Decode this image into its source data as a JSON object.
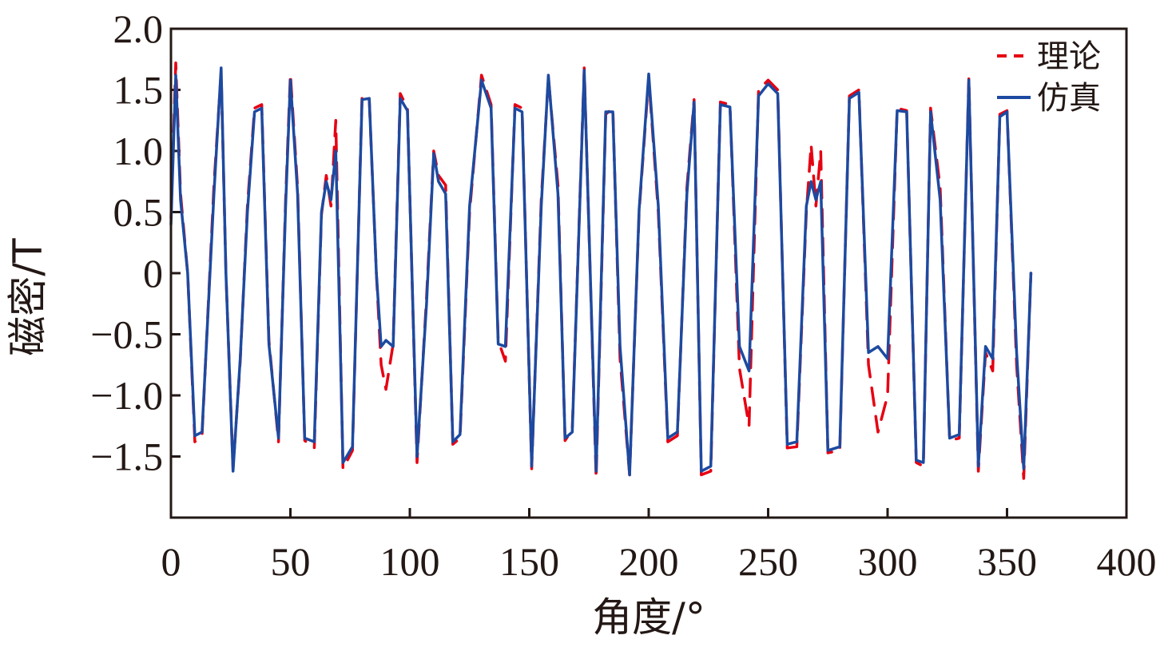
{
  "chart_data": {
    "type": "line",
    "title": "",
    "xlabel": "角度/°",
    "ylabel": "磁密/T",
    "xlim": [
      0,
      400
    ],
    "ylim": [
      -2.0,
      2.0
    ],
    "xticks": [
      0,
      50,
      100,
      150,
      200,
      250,
      300,
      350,
      400
    ],
    "xtick_labels": [
      "0",
      "50",
      "100",
      "150",
      "200",
      "250",
      "300",
      "350",
      "400"
    ],
    "yticks": [
      2.0,
      1.5,
      1.0,
      0.5,
      0,
      -0.5,
      -1.0,
      -1.5
    ],
    "ytick_labels": [
      "2.0",
      "1.5",
      "1.0",
      "0.5",
      "0",
      "−0.5",
      "−1.0",
      "−1.5"
    ],
    "grid": false,
    "legend_position": "top-right",
    "colors": {
      "theory": "#e60012",
      "simulation": "#1d4aa0"
    },
    "series": [
      {
        "name": "理论",
        "style": "dashed",
        "x": [
          0,
          2,
          4,
          7,
          10,
          13,
          18,
          21,
          23,
          26,
          29,
          32,
          35,
          38,
          41,
          45,
          48,
          50,
          53,
          56,
          60,
          63,
          65,
          67,
          69,
          72,
          76,
          80,
          83,
          86,
          88,
          90,
          93,
          96,
          99,
          103,
          107,
          110,
          112,
          115,
          118,
          121,
          125,
          130,
          134,
          137,
          140,
          144,
          147,
          151,
          155,
          158,
          162,
          165,
          168,
          173,
          178,
          182,
          185,
          188,
          192,
          196,
          200,
          204,
          208,
          212,
          216,
          219,
          222,
          226,
          230,
          234,
          238,
          242,
          246,
          250,
          254,
          258,
          262,
          266,
          268,
          270,
          272,
          275,
          280,
          284,
          288,
          292,
          296,
          300,
          304,
          308,
          312,
          315,
          318,
          322,
          326,
          330,
          334,
          338,
          341,
          344,
          347,
          350,
          354,
          357,
          360
        ],
        "y": [
          0.45,
          1.72,
          0.65,
          0,
          -1.38,
          -1.33,
          0.72,
          1.65,
          0,
          -1.6,
          -0.72,
          0.55,
          1.35,
          1.38,
          -0.55,
          -1.38,
          0.6,
          1.63,
          0.7,
          -1.37,
          -1.43,
          0.48,
          0.8,
          0.55,
          1.25,
          -1.6,
          -1.45,
          1.45,
          1.42,
          0,
          -0.75,
          -0.95,
          -0.58,
          1.47,
          1.35,
          -1.55,
          -0.2,
          1.0,
          0.8,
          0.72,
          -1.4,
          -1.35,
          0.5,
          1.62,
          1.38,
          -0.55,
          -0.72,
          1.38,
          1.35,
          -1.6,
          0.6,
          1.6,
          0.72,
          -1.37,
          -1.28,
          1.68,
          -1.68,
          1.3,
          1.35,
          -0.7,
          -1.65,
          0.5,
          1.6,
          0.5,
          -1.38,
          -1.33,
          0.7,
          1.42,
          -1.65,
          -1.62,
          1.4,
          1.38,
          -0.78,
          -1.25,
          1.5,
          1.58,
          1.5,
          -1.43,
          -1.42,
          0.5,
          1.05,
          0.55,
          1.0,
          -1.47,
          -1.45,
          1.45,
          1.5,
          -0.75,
          -1.3,
          -1.0,
          1.35,
          1.33,
          -1.55,
          -1.58,
          1.35,
          0.7,
          -1.37,
          -1.35,
          1.6,
          -1.62,
          -0.65,
          -0.8,
          1.3,
          1.33,
          -0.75,
          -1.68,
          0
        ]
      },
      {
        "name": "仿真",
        "style": "solid",
        "x": [
          0,
          2,
          4,
          7,
          10,
          13,
          18,
          21,
          23,
          26,
          29,
          32,
          35,
          38,
          41,
          45,
          48,
          50,
          53,
          56,
          60,
          63,
          65,
          67,
          69,
          72,
          76,
          80,
          83,
          86,
          88,
          90,
          93,
          96,
          99,
          103,
          107,
          110,
          112,
          115,
          118,
          121,
          125,
          130,
          134,
          137,
          140,
          144,
          147,
          151,
          155,
          158,
          162,
          165,
          168,
          173,
          178,
          182,
          185,
          188,
          192,
          196,
          200,
          204,
          208,
          212,
          216,
          219,
          222,
          226,
          230,
          234,
          238,
          242,
          246,
          250,
          254,
          258,
          262,
          266,
          268,
          270,
          272,
          275,
          280,
          284,
          288,
          292,
          296,
          300,
          304,
          308,
          312,
          315,
          318,
          322,
          326,
          330,
          334,
          338,
          341,
          344,
          347,
          350,
          354,
          357,
          360
        ],
        "y": [
          0.4,
          1.62,
          0.6,
          0,
          -1.33,
          -1.3,
          0.65,
          1.68,
          0,
          -1.62,
          -0.7,
          0.5,
          1.32,
          1.35,
          -0.58,
          -1.35,
          0.55,
          1.58,
          0.65,
          -1.35,
          -1.38,
          0.5,
          0.75,
          0.6,
          1.0,
          -1.55,
          -1.42,
          1.42,
          1.43,
          0,
          -0.6,
          -0.55,
          -0.6,
          1.43,
          1.33,
          -1.5,
          -0.25,
          0.98,
          0.75,
          0.65,
          -1.38,
          -1.32,
          0.55,
          1.58,
          1.35,
          -0.58,
          -0.6,
          1.35,
          1.32,
          -1.58,
          0.55,
          1.62,
          0.65,
          -1.35,
          -1.3,
          1.66,
          -1.62,
          1.32,
          1.32,
          -0.6,
          -1.65,
          0.52,
          1.63,
          0.55,
          -1.35,
          -1.3,
          0.65,
          1.4,
          -1.62,
          -1.58,
          1.38,
          1.36,
          -0.6,
          -0.8,
          1.45,
          1.55,
          1.47,
          -1.4,
          -1.38,
          0.55,
          0.75,
          0.6,
          0.75,
          -1.45,
          -1.42,
          1.43,
          1.48,
          -0.65,
          -0.6,
          -0.7,
          1.33,
          1.32,
          -1.53,
          -1.55,
          1.32,
          0.6,
          -1.35,
          -1.32,
          1.58,
          -1.58,
          -0.6,
          -0.7,
          1.28,
          1.32,
          -0.65,
          -1.6,
          0
        ]
      }
    ]
  }
}
